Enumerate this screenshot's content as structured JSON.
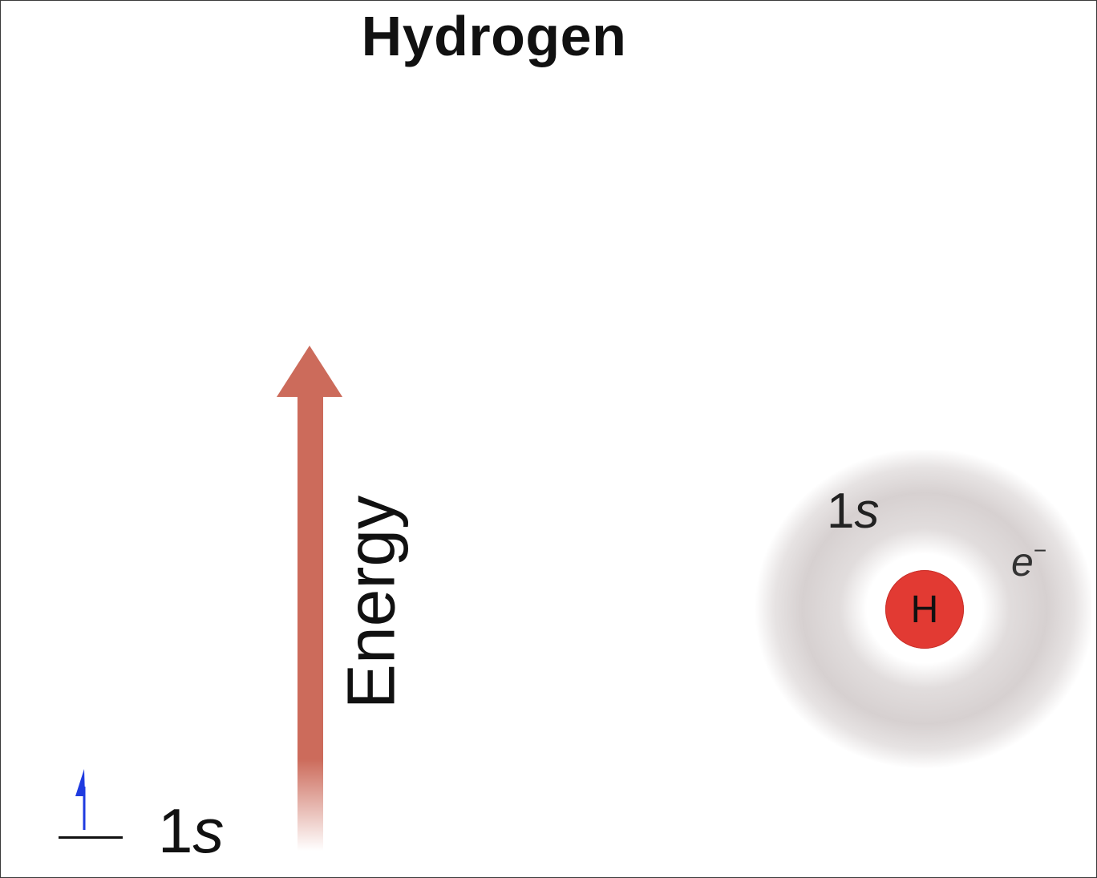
{
  "title": "Hydrogen",
  "energy_axis": {
    "label": "Energy",
    "arrow_color": "#cc6b5b"
  },
  "energy_level": {
    "orbital_number": "1",
    "orbital_letter": "s",
    "electron_spin": "up",
    "spin_arrow_color": "#1f3be0"
  },
  "atom": {
    "nucleus_symbol": "H",
    "nucleus_color": "#e23a33",
    "orbital_number": "1",
    "orbital_letter": "s",
    "electron_symbol": "e",
    "electron_charge": "−",
    "cloud_color": "#c9c1c1"
  }
}
